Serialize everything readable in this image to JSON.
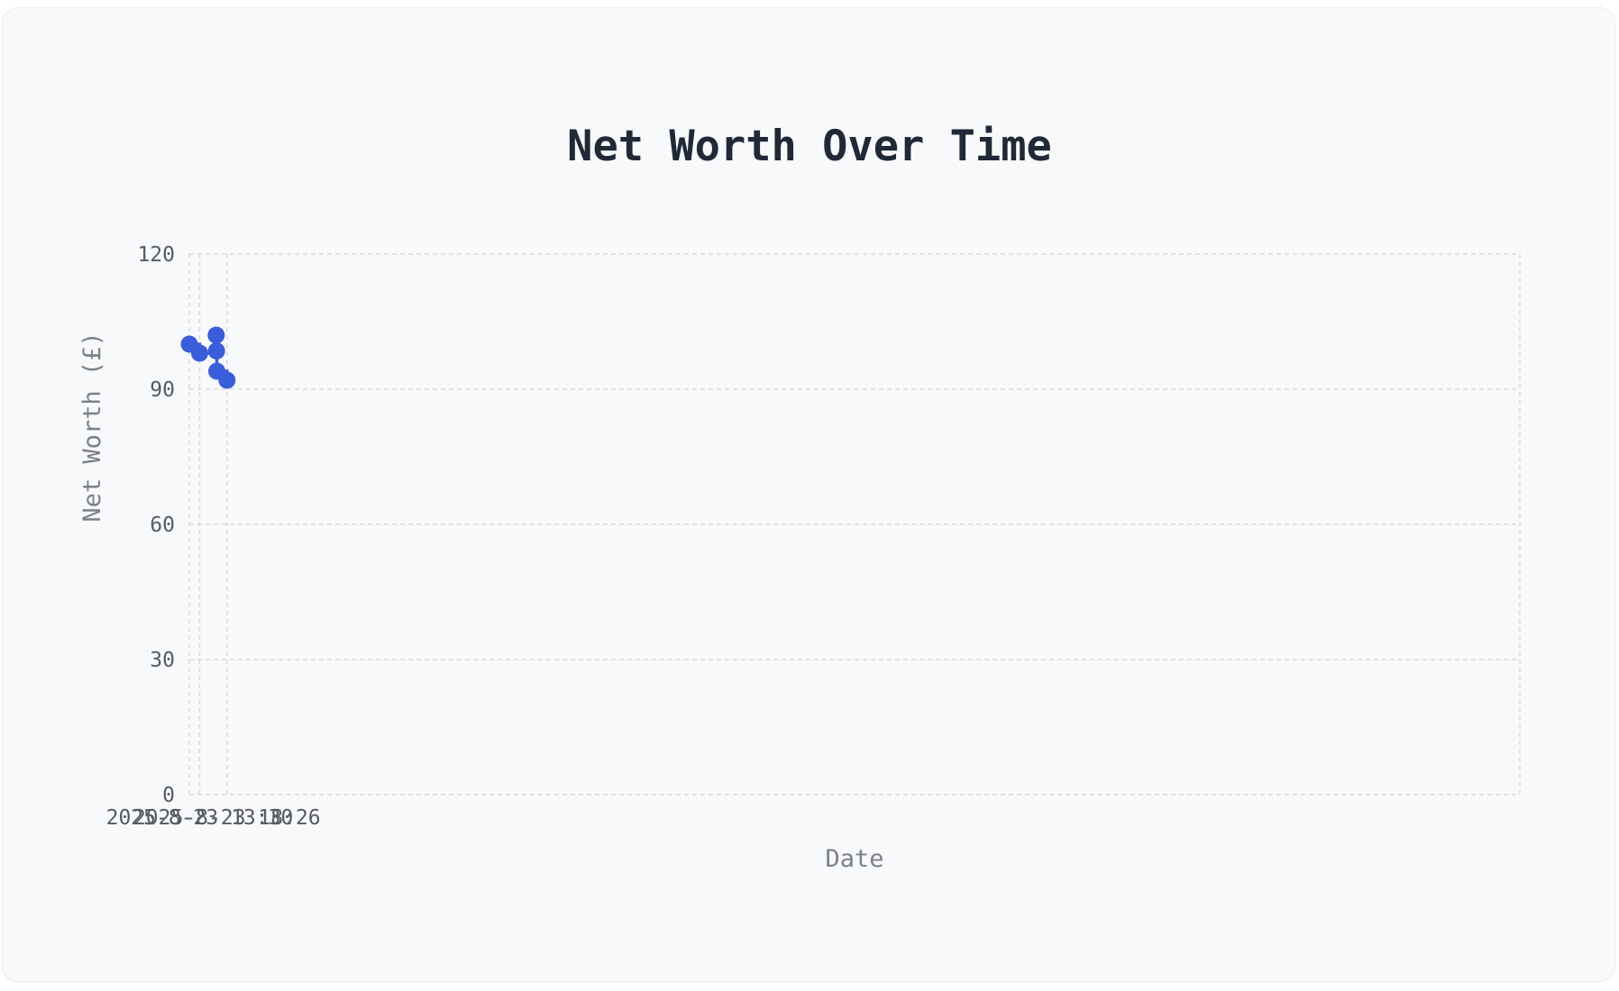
{
  "chart_data": {
    "type": "line",
    "title": "Net Worth Over Time",
    "xlabel": "Date",
    "ylabel": "Net Worth (£)",
    "xlim": [
      "2025-08-23 11:38",
      "2025-09-02 11:44"
    ],
    "ylim": [
      0,
      120
    ],
    "yticks": [
      "0",
      "30",
      "60",
      "90",
      "120"
    ],
    "xticks": [
      {
        "label": "2025-8-23 13:30",
        "x": "2025-08-23 13:30"
      },
      {
        "label": "2025-8-23 18:26",
        "x": "2025-08-23 18:26"
      }
    ],
    "grid": true,
    "line_shape": "step",
    "series_color": "#3a5ddc",
    "x": [
      "2025-08-23 11:38",
      "2025-08-23 13:30",
      "2025-08-23 16:29",
      "2025-08-23 16:33",
      "2025-08-23 16:36",
      "2025-08-23 18:26"
    ],
    "y": [
      100,
      98,
      102,
      98.5,
      94,
      92
    ]
  }
}
